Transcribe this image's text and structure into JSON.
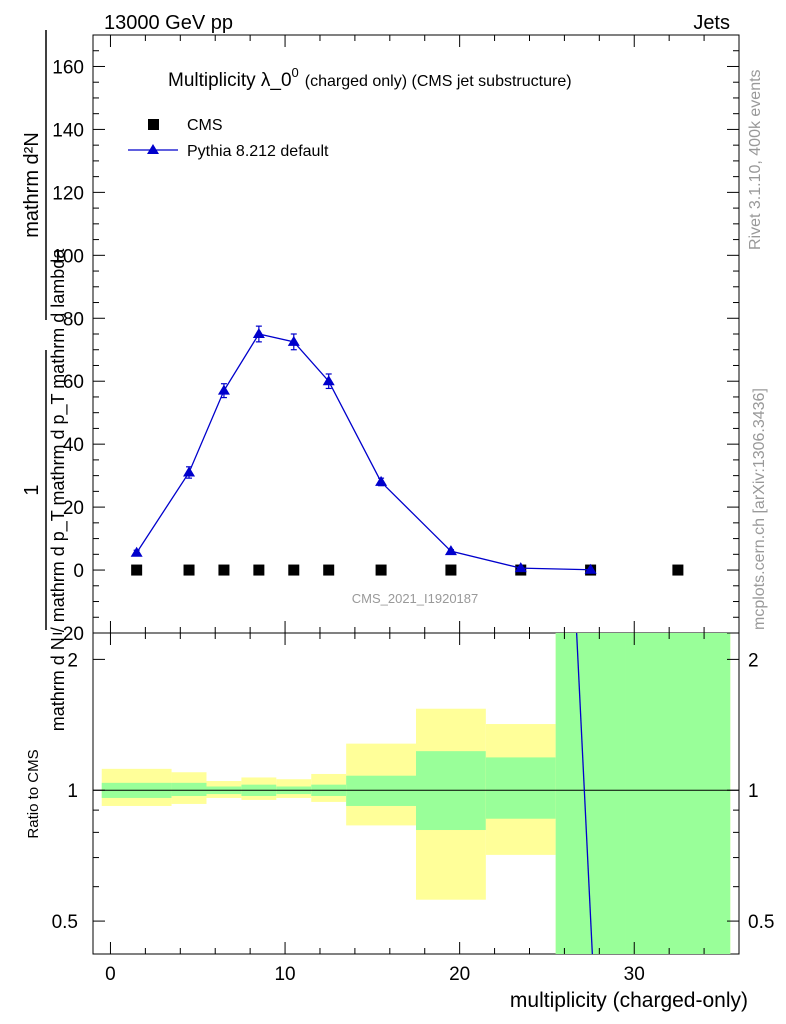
{
  "header": {
    "left": "13000 GeV pp",
    "right": "Jets"
  },
  "side": {
    "rivet": "Rivet 3.1.10,  400k events",
    "mcplots": "mcplots.cern.ch [arXiv:1306.3436]"
  },
  "chart_data": {
    "type": "scatter",
    "title_main": "Multiplicity λ_0",
    "title_sup": "0",
    "title_sub": "(charged only) (CMS jet substructure)",
    "watermark": "CMS_2021_I1920187",
    "ylabel_top_num": "1",
    "ylabel_top_den": "mathrm d N / mathrm d p_T mathrm d p_T mathrm d lambda",
    "ylabel_top_full": "1 / mathrm d N / mathrm d p_T  mathrm d p_T mathrm d lambda  mathrm d^2N",
    "ylabel_left_num": "mathrm d²N",
    "ylabel_ratio": "Ratio to CMS",
    "xlabel": "multiplicity (charged-only)",
    "xlim": [
      -1,
      36
    ],
    "ylim": [
      -20,
      170
    ],
    "ratio_ylim": [
      0.42,
      2.3
    ],
    "xticks": [
      "0",
      "10",
      "20",
      "30"
    ],
    "yticks": [
      "−20",
      "0",
      "20",
      "40",
      "60",
      "80",
      "100",
      "120",
      "140",
      "160"
    ],
    "ratio_yticks": [
      "0.5",
      "1",
      "2"
    ],
    "legend": [
      {
        "name": "CMS",
        "marker": "square",
        "color": "#000000"
      },
      {
        "name": "Pythia 8.212 default",
        "marker": "triangle",
        "color": "#0000cc"
      }
    ],
    "bins": [
      [
        -0.5,
        3.5
      ],
      [
        3.5,
        5.5
      ],
      [
        5.5,
        7.5
      ],
      [
        7.5,
        9.5
      ],
      [
        9.5,
        11.5
      ],
      [
        11.5,
        13.5
      ],
      [
        13.5,
        17.5
      ],
      [
        17.5,
        21.5
      ],
      [
        21.5,
        25.5
      ],
      [
        25.5,
        29.5
      ],
      [
        29.5,
        35.5
      ]
    ],
    "series": [
      {
        "name": "CMS",
        "x": [
          1.5,
          4.5,
          6.5,
          8.5,
          10.5,
          12.5,
          15.5,
          19.5,
          23.5,
          27.5,
          32.5
        ],
        "y": [
          0,
          0,
          0,
          0,
          0,
          0,
          0,
          0,
          0,
          0,
          0
        ]
      },
      {
        "name": "Pythia 8.212 default",
        "x": [
          1.5,
          4.5,
          6.5,
          8.5,
          10.5,
          12.5,
          15.5,
          19.5,
          23.5,
          27.5
        ],
        "y": [
          5.5,
          31,
          57,
          75,
          72.5,
          60,
          28,
          6,
          0.6,
          0.1
        ],
        "yerr": [
          0.8,
          1.8,
          2.2,
          2.5,
          2.5,
          2.3,
          1.2,
          0.5,
          0.2,
          0.1
        ]
      }
    ],
    "ratio_bands": {
      "green_lo": [
        0.96,
        0.97,
        0.98,
        0.97,
        0.98,
        0.97,
        0.92,
        0.81,
        0.86,
        0.42,
        0.42
      ],
      "green_hi": [
        1.04,
        1.04,
        1.02,
        1.03,
        1.02,
        1.03,
        1.08,
        1.23,
        1.19,
        2.3,
        2.3
      ],
      "yellow_lo": [
        0.92,
        0.93,
        0.96,
        0.95,
        0.96,
        0.94,
        0.83,
        0.56,
        0.71,
        0.42,
        0.42
      ],
      "yellow_hi": [
        1.12,
        1.1,
        1.05,
        1.07,
        1.06,
        1.09,
        1.28,
        1.54,
        1.42,
        2.3,
        2.3
      ]
    },
    "ratio_line": {
      "x": [
        26.7,
        27.6
      ],
      "y": [
        2.3,
        0.42
      ]
    }
  }
}
